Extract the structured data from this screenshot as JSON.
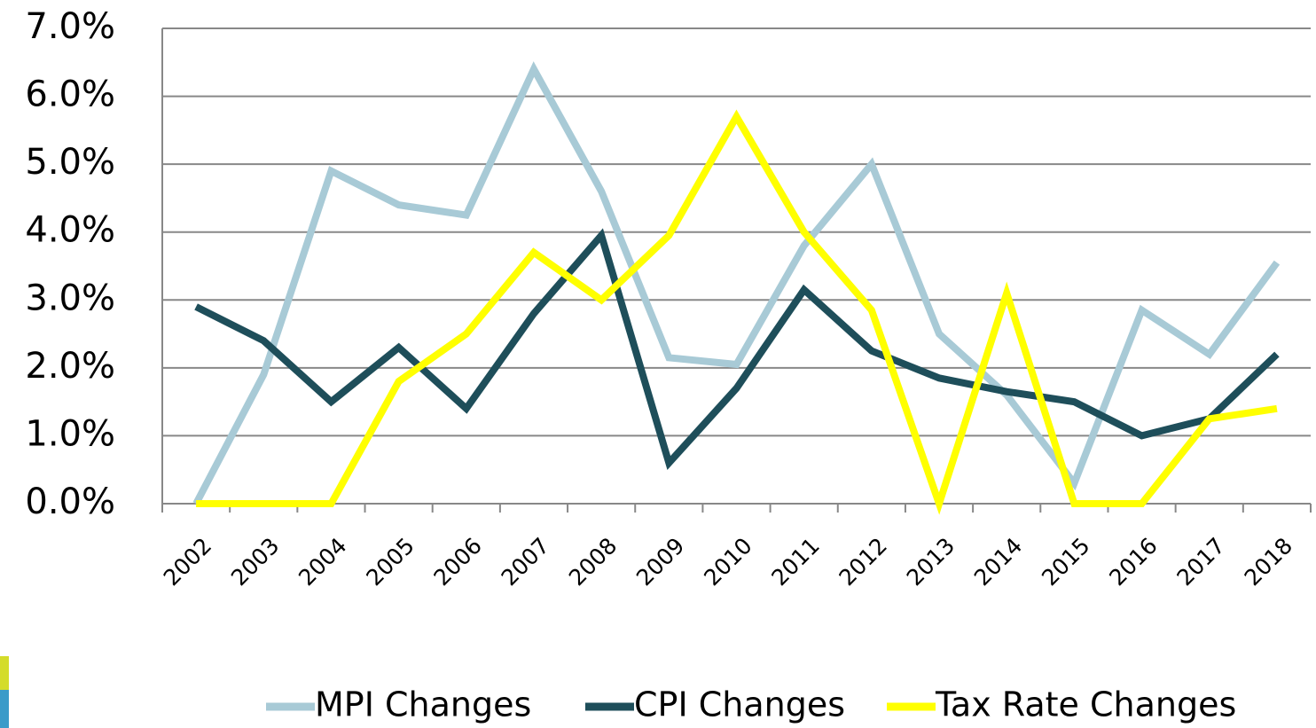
{
  "chart_data": {
    "type": "line",
    "categories": [
      "2002",
      "2003",
      "2004",
      "2005",
      "2006",
      "2007",
      "2008",
      "2009",
      "2010",
      "2011",
      "2012",
      "2013",
      "2014",
      "2015",
      "2016",
      "2017",
      "2018"
    ],
    "series": [
      {
        "name": "MPI Changes",
        "color": "#a8cad6",
        "values": [
          0.0,
          1.9,
          4.9,
          4.4,
          4.25,
          6.4,
          4.6,
          2.15,
          2.05,
          3.8,
          5.0,
          2.5,
          1.6,
          0.3,
          2.85,
          2.2,
          3.55
        ]
      },
      {
        "name": "CPI Changes",
        "color": "#1e4e5a",
        "values": [
          2.9,
          2.4,
          1.5,
          2.3,
          1.4,
          2.8,
          3.95,
          0.6,
          1.7,
          3.15,
          2.25,
          1.85,
          1.65,
          1.5,
          1.0,
          1.25,
          2.2
        ]
      },
      {
        "name": "Tax Rate Changes",
        "color": "#ffff00",
        "values": [
          0.0,
          0.0,
          0.0,
          1.8,
          2.5,
          3.7,
          3.0,
          3.95,
          5.7,
          4.0,
          2.85,
          0.0,
          3.1,
          0.0,
          0.0,
          1.25,
          1.4
        ]
      }
    ],
    "ylim": [
      0,
      7
    ],
    "yticks": [
      {
        "value": 0,
        "label": "0.0%"
      },
      {
        "value": 1,
        "label": "1.0%"
      },
      {
        "value": 2,
        "label": "2.0%"
      },
      {
        "value": 3,
        "label": "3.0%"
      },
      {
        "value": 4,
        "label": "4.0%"
      },
      {
        "value": 5,
        "label": "5.0%"
      },
      {
        "value": 6,
        "label": "6.0%"
      },
      {
        "value": 7,
        "label": "7.0%"
      }
    ],
    "grid": true,
    "legend": "bottom"
  }
}
